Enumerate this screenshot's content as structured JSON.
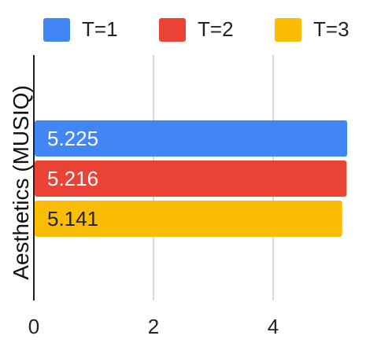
{
  "chart_data": {
    "type": "bar",
    "orientation": "horizontal",
    "title": "",
    "xlabel": "",
    "ylabel": "Aesthetics (MUSIQ)",
    "categories": [
      ""
    ],
    "xlim": [
      0,
      6
    ],
    "xticks": [
      "0",
      "2",
      "4"
    ],
    "grid": true,
    "legend_position": "top",
    "series": [
      {
        "name": "T=1",
        "values": [
          5.225
        ],
        "label": "5.225",
        "color": "#4285F4",
        "label_color": "#ffffff"
      },
      {
        "name": "T=2",
        "values": [
          5.216
        ],
        "label": "5.216",
        "color": "#EA4335",
        "label_color": "#ffffff"
      },
      {
        "name": "T=3",
        "values": [
          5.141
        ],
        "label": "5.141",
        "color": "#FBBC04",
        "label_color": "#222222"
      }
    ]
  }
}
